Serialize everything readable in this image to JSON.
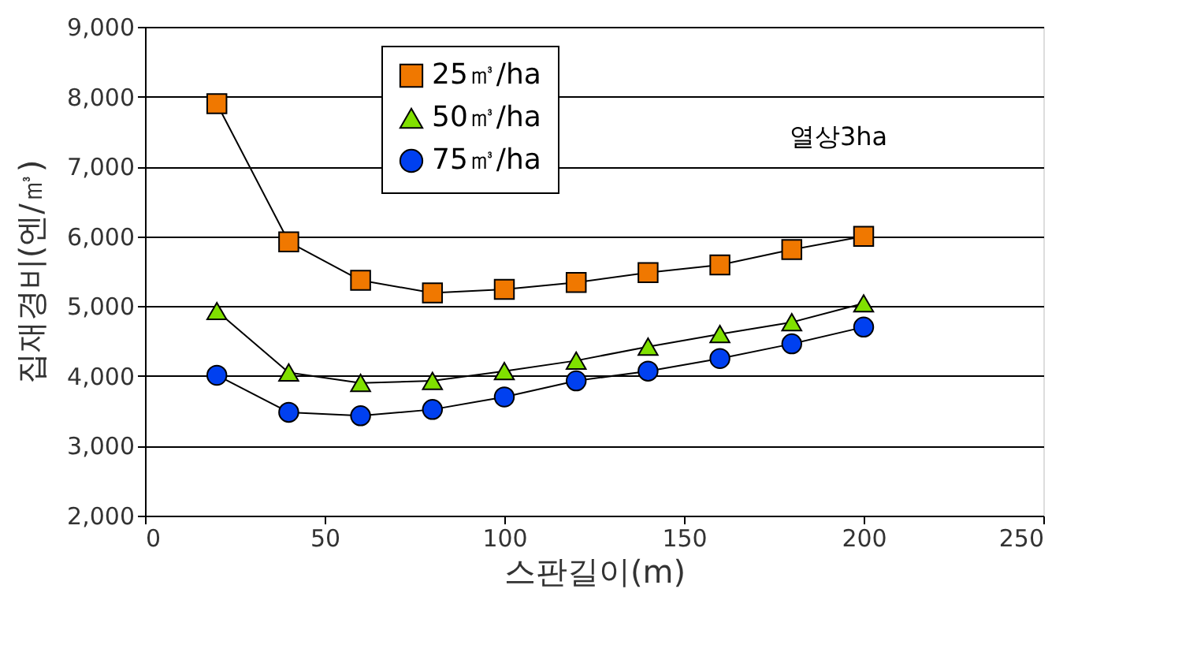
{
  "chart_data": {
    "type": "line",
    "xlabel": "스판길이(m)",
    "ylabel": "집재경비(엔/㎥)",
    "x": [
      20,
      40,
      60,
      80,
      100,
      120,
      140,
      160,
      180,
      200
    ],
    "series": [
      {
        "name": "25㎥/ha",
        "color": "#f07800",
        "marker": "square",
        "values": [
          7900,
          5920,
          5370,
          5190,
          5240,
          5340,
          5480,
          5590,
          5810,
          6000
        ]
      },
      {
        "name": "50㎥/ha",
        "color": "#80e000",
        "marker": "triangle",
        "values": [
          4930,
          4050,
          3900,
          3930,
          4070,
          4220,
          4420,
          4600,
          4770,
          5040
        ]
      },
      {
        "name": "75㎥/ha",
        "color": "#0040f0",
        "marker": "circle",
        "values": [
          4010,
          3480,
          3430,
          3520,
          3700,
          3930,
          4070,
          4250,
          4460,
          4700
        ]
      }
    ],
    "xlim": [
      0,
      250
    ],
    "xticks": [
      0,
      50,
      100,
      150,
      200,
      250
    ],
    "ylim": [
      2000,
      9000
    ],
    "yticks": [
      {
        "value": 2000,
        "label": "2,000"
      },
      {
        "value": 3000,
        "label": "3,000"
      },
      {
        "value": 4000,
        "label": "4,000"
      },
      {
        "value": 5000,
        "label": "5,000"
      },
      {
        "value": 6000,
        "label": "6,000"
      },
      {
        "value": 7000,
        "label": "7,000"
      },
      {
        "value": 8000,
        "label": "8,000"
      },
      {
        "value": 9000,
        "label": "9,000"
      }
    ],
    "grid": "y",
    "legend": "top left",
    "line_style": "solid",
    "annotations": [
      "열상3ha"
    ]
  }
}
